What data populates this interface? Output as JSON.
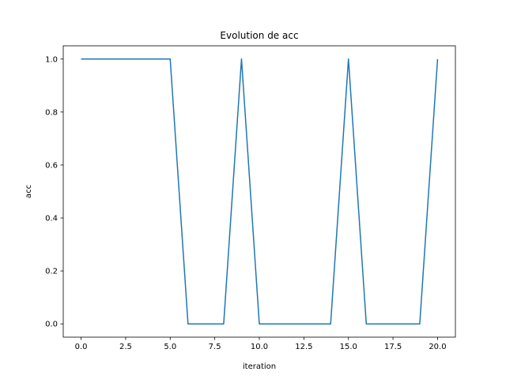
{
  "chart_data": {
    "type": "line",
    "title": "Evolution de acc",
    "xlabel": "iteration",
    "ylabel": "acc",
    "xlim": [
      -1,
      21
    ],
    "ylim": [
      -0.05,
      1.05
    ],
    "xticks": [
      0,
      2.5,
      5,
      7.5,
      10,
      12.5,
      15,
      17.5,
      20
    ],
    "xtick_labels": [
      "0.0",
      "2.5",
      "5.0",
      "7.5",
      "10.0",
      "12.5",
      "15.0",
      "17.5",
      "20.0"
    ],
    "yticks": [
      0,
      0.2,
      0.4,
      0.6,
      0.8,
      1.0
    ],
    "ytick_labels": [
      "0.0",
      "0.2",
      "0.4",
      "0.6",
      "0.8",
      "1.0"
    ],
    "grid": false,
    "series": [
      {
        "color": "#1f77b4",
        "x": [
          0,
          1,
          2,
          3,
          4,
          5,
          6,
          7,
          8,
          9,
          10,
          11,
          12,
          13,
          14,
          15,
          16,
          17,
          18,
          19,
          20
        ],
        "y": [
          1,
          1,
          1,
          1,
          1,
          1,
          0,
          0,
          0,
          1,
          0,
          0,
          0,
          0,
          0,
          1,
          0,
          0,
          0,
          0,
          1
        ]
      }
    ]
  }
}
